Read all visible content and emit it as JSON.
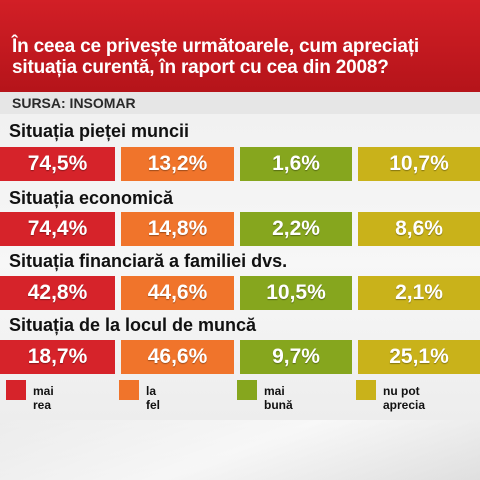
{
  "header": {
    "title": "În ceea ce privește următoarele, cum apreciați situația curentă, în raport cu cea din 2008?",
    "source": "SURSA: INSOMAR"
  },
  "colors": {
    "mai_rea": "#d6232a",
    "la_fel": "#f0742b",
    "mai_buna": "#86a61e",
    "nu_pot_aprecia": "#c9b21a"
  },
  "chart_data": {
    "type": "bar",
    "title": "În ceea ce privește următoarele, cum apreciați situația curentă, în raport cu cea din 2008?",
    "categories": [
      "Situația pieței muncii",
      "Situația economică",
      "Situația financiară a familiei dvs.",
      "Situația de la locul de muncă"
    ],
    "series": [
      {
        "name": "mai rea",
        "values": [
          74.5,
          74.4,
          42.8,
          18.7
        ],
        "labels": [
          "74,5%",
          "74,4%",
          "42,8%",
          "18,7%"
        ]
      },
      {
        "name": "la fel",
        "values": [
          13.2,
          14.8,
          44.6,
          46.6
        ],
        "labels": [
          "13,2%",
          "14,8%",
          "44,6%",
          "46,6%"
        ]
      },
      {
        "name": "mai bună",
        "values": [
          1.6,
          2.2,
          10.5,
          9.7
        ],
        "labels": [
          "1,6%",
          "2,2%",
          "10,5%",
          "9,7%"
        ]
      },
      {
        "name": "nu pot aprecia",
        "values": [
          10.7,
          8.6,
          2.1,
          25.1
        ],
        "labels": [
          "10,7%",
          "8,6%",
          "2,1%",
          "25,1%"
        ]
      }
    ]
  },
  "legend": [
    {
      "label": "mai rea",
      "color_key": "mai_rea"
    },
    {
      "label": "la fel",
      "color_key": "la_fel"
    },
    {
      "label": "mai bună",
      "color_key": "mai_buna"
    },
    {
      "label": "nu pot\naprecia",
      "color_key": "nu_pot_aprecia"
    }
  ]
}
